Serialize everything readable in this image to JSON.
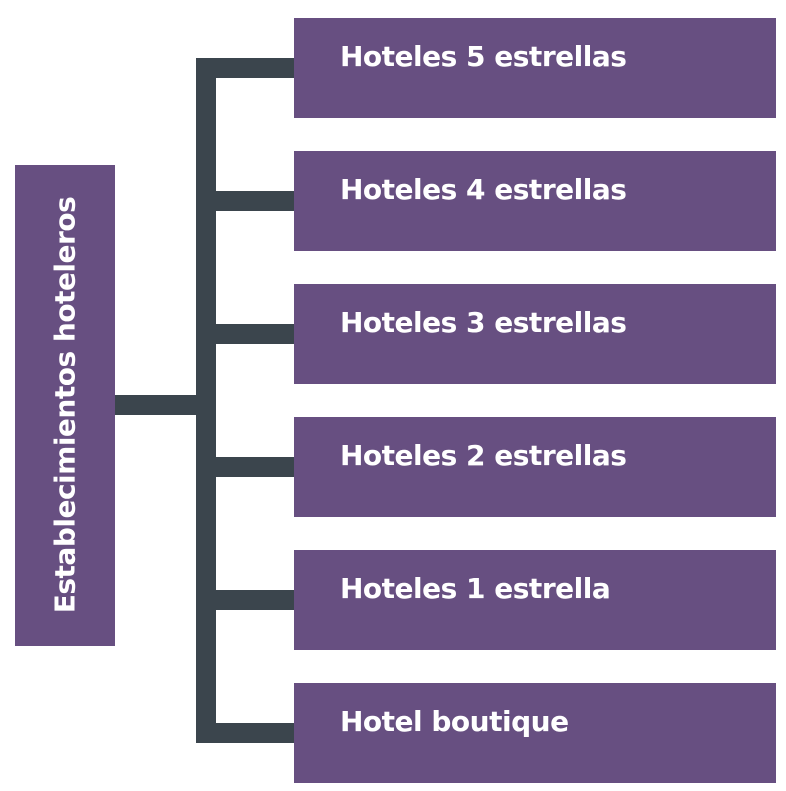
{
  "diagram": {
    "root": {
      "label": "Establecimientos hoteleros"
    },
    "children": [
      {
        "label": "Hoteles 5 estrellas"
      },
      {
        "label": "Hoteles 4 estrellas"
      },
      {
        "label": "Hoteles 3 estrellas"
      },
      {
        "label": "Hoteles 2 estrellas"
      },
      {
        "label": "Hoteles 1 estrella"
      },
      {
        "label": "Hotel boutique"
      }
    ],
    "colors": {
      "box": "#674f81",
      "connector": "#3b454d",
      "text": "#ffffff",
      "background": "#ffffff"
    }
  }
}
